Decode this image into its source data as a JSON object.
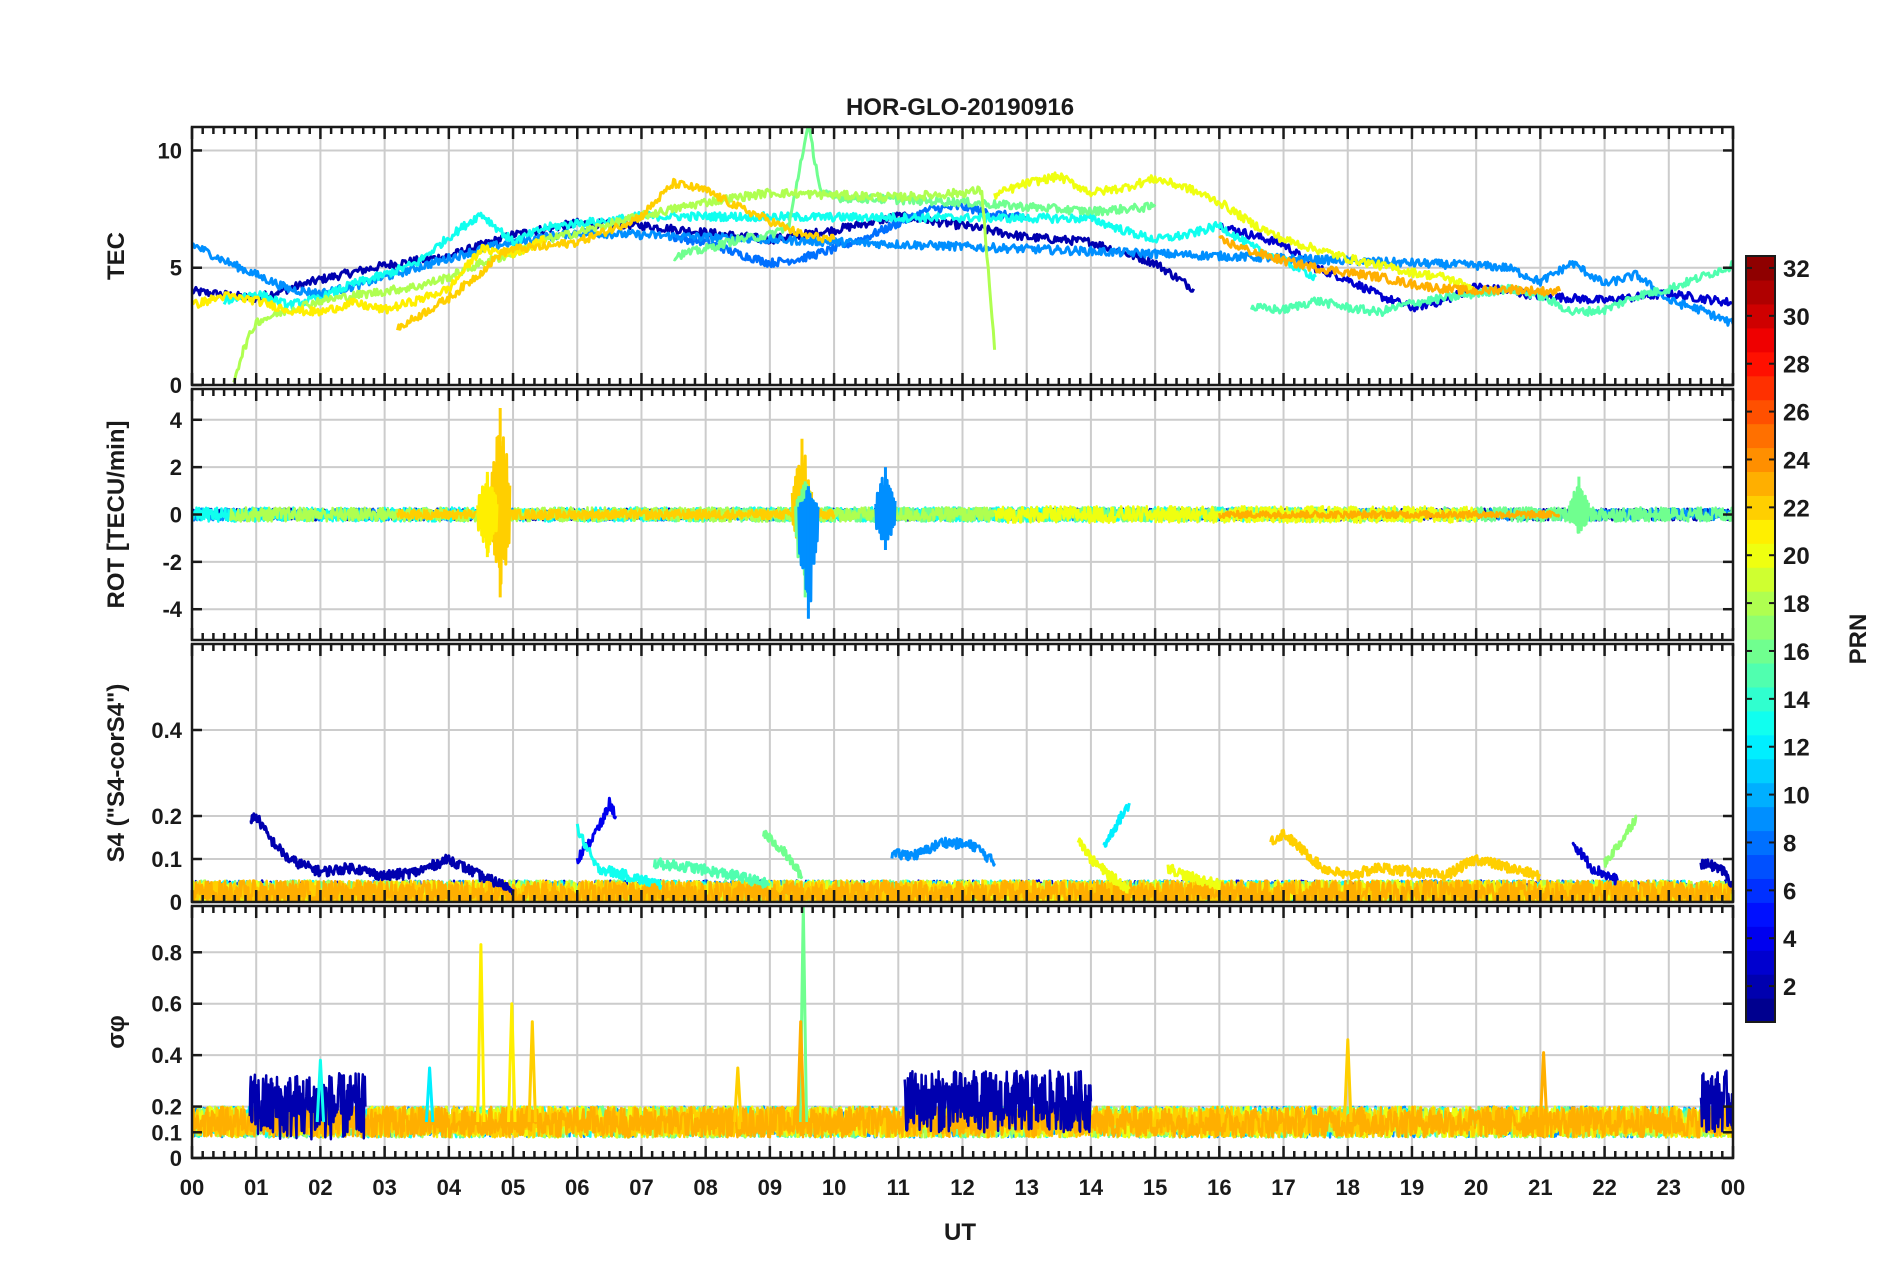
{
  "chart_data": {
    "type": "line",
    "title": "HOR-GLO-20190916",
    "xlabel": "UT",
    "x_ticks": [
      "00",
      "01",
      "02",
      "03",
      "04",
      "05",
      "06",
      "07",
      "08",
      "09",
      "10",
      "11",
      "12",
      "13",
      "14",
      "15",
      "16",
      "17",
      "18",
      "19",
      "20",
      "21",
      "22",
      "23",
      "00"
    ],
    "xlim": [
      0,
      24
    ],
    "grid": true,
    "panels": [
      {
        "id": "tec",
        "ylabel": "TEC",
        "ylim": [
          0,
          11
        ],
        "yticks": [
          0,
          5,
          10
        ],
        "ytick_labels": [
          "0",
          "5",
          "10"
        ],
        "series": [
          {
            "prn": 2,
            "x": [
              0,
              1,
              2,
              3,
              4,
              5,
              6,
              7,
              8,
              9,
              10,
              11,
              12,
              13,
              14,
              15,
              15.6
            ],
            "y": [
              4,
              3.7,
              4.5,
              5.1,
              5.5,
              6.4,
              6.9,
              6.8,
              6.5,
              6.2,
              6.6,
              7.2,
              6.8,
              6.3,
              6.1,
              5.2,
              4.1
            ]
          },
          {
            "prn": 3,
            "x": [
              16,
              16.5,
              17,
              17.5,
              18,
              18.5,
              19,
              19.5,
              20,
              21,
              22,
              23,
              24
            ],
            "y": [
              6.8,
              6.4,
              6,
              5,
              4.5,
              3.8,
              3.3,
              3.6,
              4.2,
              3.8,
              3.6,
              3.9,
              3.5
            ]
          },
          {
            "prn": 8,
            "x": [
              7.5,
              8,
              8.5,
              9,
              9.5,
              10,
              10.5,
              11,
              11.5,
              12,
              12.5,
              13
            ],
            "y": [
              6.3,
              6.1,
              5.6,
              5.2,
              5.4,
              5.8,
              6.3,
              6.9,
              7.5,
              7.6,
              7.3,
              7.1
            ]
          },
          {
            "prn": 9,
            "x": [
              0,
              0.5,
              1,
              1.5,
              2,
              2.5,
              3,
              3.5,
              4,
              4.5,
              5,
              5.5,
              6,
              20,
              20.5,
              21,
              21.5,
              22,
              22.5,
              23,
              23.5,
              24
            ],
            "y": [
              6,
              5.3,
              4.7,
              4.1,
              3.9,
              4.2,
              4.6,
              5,
              5.4,
              5.8,
              6.1,
              6.3,
              6.5,
              5.1,
              5,
              4.4,
              5.2,
              4.3,
              4.7,
              3.6,
              3.2,
              2.6
            ]
          },
          {
            "prn": 13,
            "x": [
              0.5,
              1,
              1.5,
              2,
              2.5,
              3,
              3.5,
              4,
              4.5,
              5,
              5.5,
              6,
              6.5,
              7,
              14,
              14.5,
              15,
              15.5,
              16,
              16.5,
              17,
              17.5
            ],
            "y": [
              3.6,
              3.9,
              3.4,
              3.7,
              4.3,
              4.7,
              5.2,
              6.3,
              7.3,
              6.1,
              6.7,
              6.9,
              7,
              7.2,
              7.1,
              6.6,
              6.2,
              6.4,
              6.8,
              5.9,
              5.3,
              4.6
            ]
          },
          {
            "prn": 15,
            "x": [
              16.5,
              17,
              17.5,
              18,
              18.5,
              19,
              19.5,
              20,
              20.5,
              21,
              21.5,
              22,
              22.5,
              23,
              23.5,
              24
            ],
            "y": [
              3.3,
              3.2,
              3.6,
              3.3,
              3.1,
              3.5,
              3.7,
              3.9,
              4.1,
              3.8,
              3.1,
              3.2,
              3.8,
              4.1,
              4.6,
              5.1
            ]
          },
          {
            "prn": 16,
            "x": [
              7.5,
              8,
              8.5,
              9,
              9.3,
              9.5,
              9.6,
              9.8,
              10,
              11,
              12,
              13,
              14,
              15
            ],
            "y": [
              5.5,
              5.8,
              6.2,
              6.4,
              6.8,
              9.8,
              11,
              8.2,
              8,
              7.9,
              7.8,
              7.6,
              7.4,
              7.6
            ]
          },
          {
            "prn": 18,
            "x": [
              0.65,
              0.8,
              1,
              1.5,
              2,
              2.5,
              3,
              3.5,
              4,
              4.5,
              5,
              5.5,
              6,
              7,
              8,
              9,
              10,
              11,
              12,
              12.3,
              12.5
            ],
            "y": [
              0.2,
              1.5,
              2.7,
              3.2,
              3.6,
              3.8,
              4,
              4.2,
              4.6,
              5.2,
              5.6,
              6.2,
              6.5,
              7.2,
              7.8,
              8.2,
              8.1,
              8,
              8.2,
              8.3,
              1.5
            ]
          },
          {
            "prn": 20,
            "x": [
              12.5,
              13,
              13.5,
              14,
              14.5,
              15,
              15.5,
              16,
              16.5,
              17,
              17.5,
              18,
              18.5,
              19,
              19.5,
              20
            ],
            "y": [
              8.1,
              8.6,
              8.9,
              8.2,
              8.4,
              8.8,
              8.4,
              7.8,
              6.9,
              6.2,
              5.8,
              5.4,
              5.1,
              4.8,
              4.6,
              4.1
            ]
          },
          {
            "prn": 21,
            "x": [
              0,
              0.5,
              1,
              1.5,
              2,
              2.5,
              3,
              3.5,
              4,
              4.5,
              5,
              5.5
            ],
            "y": [
              3.4,
              3.8,
              3.6,
              3.2,
              3.1,
              3.5,
              3.2,
              3.6,
              4.1,
              5.8,
              5.6,
              6.2
            ]
          },
          {
            "prn": 22,
            "x": [
              3.2,
              3.5,
              4,
              4.5,
              4.8,
              5,
              5.5,
              6,
              6.5,
              7,
              7.5,
              8,
              8.5,
              9,
              9.5,
              10
            ],
            "y": [
              2.4,
              2.9,
              3.7,
              4.8,
              5.6,
              5.8,
              5.9,
              6.1,
              6.6,
              7.2,
              8.6,
              8.3,
              7.6,
              7,
              6.4,
              6.2
            ]
          },
          {
            "prn": 23,
            "x": [
              16,
              16.5,
              17,
              17.5,
              18,
              18.5,
              19,
              19.5,
              20,
              20.5,
              21,
              21.3
            ],
            "y": [
              6.2,
              5.7,
              5.3,
              5,
              4.8,
              4.6,
              4.3,
              4.1,
              4,
              4.1,
              4,
              4
            ]
          }
        ]
      },
      {
        "id": "rot",
        "ylabel": "ROT [TECU/min]",
        "ylim": [
          -5.3,
          5.3
        ],
        "yticks": [
          -4,
          -2,
          0,
          2,
          4
        ],
        "ytick_labels": [
          "-4",
          "-2",
          "0",
          "2",
          "4"
        ],
        "series": [
          {
            "prn": 2,
            "baseline": 0,
            "amp": 0.25,
            "x_range": [
              0,
              24
            ]
          },
          {
            "prn": 9,
            "baseline": 0,
            "amp": 0.25,
            "x_range": [
              0,
              24
            ]
          },
          {
            "prn": 13,
            "baseline": 0,
            "amp": 0.3,
            "x_range": [
              0,
              17.5
            ]
          },
          {
            "prn": 16,
            "baseline": 0,
            "amp": 0.3,
            "x_range": [
              7.5,
              24
            ]
          },
          {
            "prn": 18,
            "baseline": 0,
            "amp": 0.3,
            "x_range": [
              0.6,
              12.5
            ]
          },
          {
            "prn": 20,
            "baseline": 0,
            "amp": 0.35,
            "x_range": [
              12.5,
              20
            ]
          },
          {
            "prn": 22,
            "baseline": 0,
            "amp": 0.2,
            "x_range": [
              3.2,
              10
            ]
          },
          {
            "prn": 23,
            "baseline": 0,
            "amp": 0.15,
            "x_range": [
              16,
              21.3
            ]
          }
        ],
        "spikes": [
          {
            "prn": 22,
            "x": 4.8,
            "ymin": -3.5,
            "ymax": 4.5
          },
          {
            "prn": 21,
            "x": 4.6,
            "ymin": -1.8,
            "ymax": 1.8
          },
          {
            "prn": 22,
            "x": 9.5,
            "ymin": -1.6,
            "ymax": 3.2
          },
          {
            "prn": 16,
            "x": 9.55,
            "ymin": -3.5,
            "ymax": 1.4
          },
          {
            "prn": 9,
            "x": 9.6,
            "ymin": -4.4,
            "ymax": 1.2
          },
          {
            "prn": 9,
            "x": 10.8,
            "ymin": -1.5,
            "ymax": 2
          },
          {
            "prn": 16,
            "x": 21.6,
            "ymin": -0.8,
            "ymax": 1.6
          }
        ]
      },
      {
        "id": "s4",
        "ylabel": "S4 (\"S4-corS4\")",
        "ylim": [
          0,
          0.6
        ],
        "yticks": [
          0,
          0.1,
          0.2,
          0.4
        ],
        "ytick_labels": [
          "0",
          "0.1",
          "0.2",
          "0.4"
        ],
        "series": [
          {
            "prn": 2,
            "x": [
              0.9,
              1,
              1.2,
              1.5,
              2,
              2.5,
              3,
              3.5,
              4,
              4.5,
              5
            ],
            "y": [
              0.19,
              0.2,
              0.15,
              0.1,
              0.07,
              0.08,
              0.06,
              0.07,
              0.1,
              0.06,
              0.03
            ]
          },
          {
            "prn": 4,
            "x": [
              6,
              6.2,
              6.4,
              6.5,
              6.6
            ],
            "y": [
              0.1,
              0.14,
              0.19,
              0.23,
              0.2
            ]
          },
          {
            "prn": 9,
            "x": [
              10.9,
              11.3,
              11.7,
              12.2,
              12.5
            ],
            "y": [
              0.11,
              0.11,
              0.14,
              0.13,
              0.09
            ]
          },
          {
            "prn": 3,
            "x": [
              21.5,
              21.8,
              22.2
            ],
            "y": [
              0.14,
              0.08,
              0.05
            ]
          },
          {
            "prn": 2,
            "x": [
              23.5,
              23.8,
              24
            ],
            "y": [
              0.09,
              0.08,
              0.04
            ]
          },
          {
            "prn": 13,
            "x": [
              6,
              6.3,
              6.8,
              7.3
            ],
            "y": [
              0.17,
              0.08,
              0.06,
              0.04
            ]
          },
          {
            "prn": 15,
            "x": [
              7.2,
              7.8,
              8.5,
              9
            ],
            "y": [
              0.09,
              0.08,
              0.06,
              0.04
            ]
          },
          {
            "prn": 16,
            "x": [
              8.9,
              9.2,
              9.5
            ],
            "y": [
              0.16,
              0.12,
              0.06
            ]
          },
          {
            "prn": 12,
            "x": [
              14.2,
              14.4,
              14.6
            ],
            "y": [
              0.13,
              0.18,
              0.23
            ]
          },
          {
            "prn": 20,
            "x": [
              13.8,
              14,
              14.3,
              14.6
            ],
            "y": [
              0.15,
              0.1,
              0.06,
              0.03
            ]
          },
          {
            "prn": 22,
            "x": [
              16.8,
              17,
              17.3,
              17.6,
              18,
              18.5,
              19,
              19.5,
              20,
              20.5,
              21
            ],
            "y": [
              0.14,
              0.16,
              0.12,
              0.08,
              0.06,
              0.08,
              0.07,
              0.06,
              0.1,
              0.08,
              0.06
            ]
          },
          {
            "prn": 17,
            "x": [
              22,
              22.3,
              22.5
            ],
            "y": [
              0.09,
              0.15,
              0.2
            ]
          },
          {
            "prn": 20,
            "x": [
              15.2,
              15.5,
              16
            ],
            "y": [
              0.08,
              0.06,
              0.04
            ]
          }
        ],
        "floor": {
          "baseline": 0.02,
          "amp": 0.03
        }
      },
      {
        "id": "sigma",
        "ylabel": "σφ",
        "ylim": [
          0,
          0.98
        ],
        "yticks": [
          0,
          0.1,
          0.2,
          0.4,
          0.6,
          0.8
        ],
        "ytick_labels": [
          "0",
          "0.1",
          "0.2",
          "0.4",
          "0.6",
          "0.8"
        ],
        "floor": {
          "baseline": 0.14,
          "amp": 0.06
        },
        "bands": [
          {
            "prn": 2,
            "x_range": [
              0.9,
              2.7
            ],
            "baseline": 0.2,
            "amp": 0.13
          },
          {
            "prn": 2,
            "x_range": [
              11.1,
              14
            ],
            "baseline": 0.22,
            "amp": 0.12
          },
          {
            "prn": 2,
            "x_range": [
              23.5,
              24
            ],
            "baseline": 0.22,
            "amp": 0.12
          }
        ],
        "spikes": [
          {
            "prn": 21,
            "x": 4.5,
            "ymax": 0.83
          },
          {
            "prn": 21,
            "x": 4.98,
            "ymax": 0.6
          },
          {
            "prn": 22,
            "x": 5.3,
            "ymax": 0.53
          },
          {
            "prn": 22,
            "x": 8.5,
            "ymax": 0.35
          },
          {
            "prn": 16,
            "x": 9.52,
            "ymax": 0.98
          },
          {
            "prn": 23,
            "x": 9.48,
            "ymax": 0.53
          },
          {
            "prn": 22,
            "x": 18,
            "ymax": 0.46
          },
          {
            "prn": 23,
            "x": 21.05,
            "ymax": 0.41
          },
          {
            "prn": 12,
            "x": 3.7,
            "ymax": 0.35
          },
          {
            "prn": 13,
            "x": 2,
            "ymax": 0.38
          }
        ]
      }
    ],
    "colorbar": {
      "label": "PRN",
      "min": 1,
      "max": 32,
      "ticks": [
        2,
        4,
        6,
        8,
        10,
        12,
        14,
        16,
        18,
        20,
        22,
        24,
        26,
        28,
        30,
        32
      ],
      "tick_labels": [
        "2",
        "4",
        "6",
        "8",
        "10",
        "12",
        "14",
        "16",
        "18",
        "20",
        "22",
        "24",
        "26",
        "28",
        "30",
        "32"
      ]
    }
  }
}
